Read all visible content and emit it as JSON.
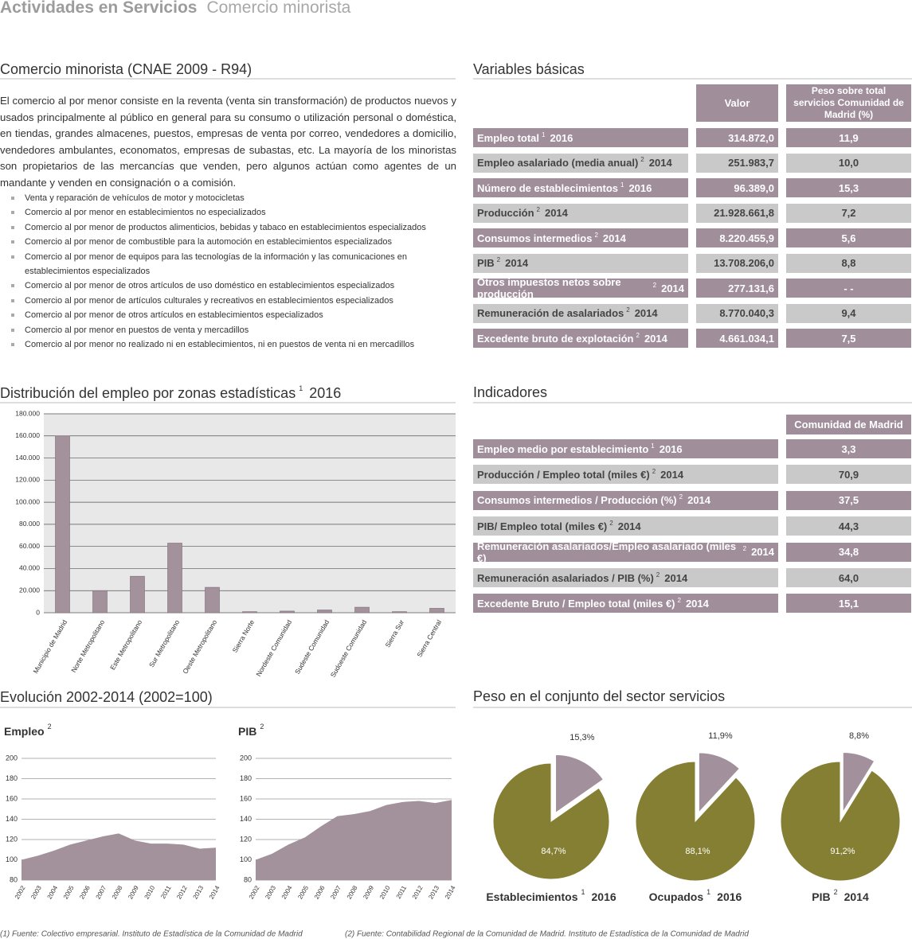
{
  "header": {
    "title": "Actividades en Servicios",
    "subtitle": "Comercio minorista"
  },
  "intro": {
    "title": "Comercio minorista (CNAE 2009 - R94)",
    "text": "El comercio al por menor consiste en la reventa (venta sin transformación) de productos nuevos y usados principalmente al público en general para su consumo o utilización personal o doméstica, en tiendas, grandes almacenes, puestos, empresas de venta por correo, vendedores a domicilio, vendedores ambulantes, economatos, empresas de subastas, etc. La mayoría de los minoristas son propietarios de las mercancías que venden, pero algunos actúan como agentes de un mandante y venden en consignación o a comisión.",
    "items": [
      "Venta y reparación de vehículos de motor y motocicletas",
      "Comercio al por menor en establecimientos no especializados",
      "Comercio al por menor de productos alimenticios, bebidas y tabaco en establecimientos especializados",
      "Comercio al por menor de combustible para la automoción en establecimientos especializados",
      "Comercio al por menor de equipos para las tecnologías de la información y las comunicaciones en establecimientos especializados",
      "Comercio al por menor de otros artículos de uso doméstico en establecimientos especializados",
      "Comercio al por menor de artículos culturales y recreativos en establecimientos especializados",
      "Comercio al por menor de otros artículos en establecimientos especializados",
      "Comercio al por menor en puestos de venta y mercadillos",
      "Comercio al por menor no realizado ni en establecimientos, ni en puestos de venta ni en mercadillos"
    ]
  },
  "basic_variables": {
    "title": "Variables básicas",
    "columns": [
      "Valor",
      "Peso sobre total servicios Comunidad de Madrid (%)"
    ],
    "rows": [
      {
        "label": "Empleo total",
        "note": "1",
        "year": "2016",
        "value": "314.872,0",
        "share": "11,9"
      },
      {
        "label": "Empleo asalariado (media anual)",
        "note": "2",
        "year": "2014",
        "value": "251.983,7",
        "share": "10,0"
      },
      {
        "label": "Número de establecimientos",
        "note": "1",
        "year": "2016",
        "value": "96.389,0",
        "share": "15,3"
      },
      {
        "label": "Producción",
        "note": "2",
        "year": "2014",
        "value": "21.928.661,8",
        "share": "7,2"
      },
      {
        "label": "Consumos intermedios",
        "note": "2",
        "year": "2014",
        "value": "8.220.455,9",
        "share": "5,6"
      },
      {
        "label": "PIB",
        "note": "2",
        "year": "2014",
        "value": "13.708.206,0",
        "share": "8,8"
      },
      {
        "label": "Otros impuestos netos sobre producción",
        "note": "2",
        "year": "2014",
        "value": "277.131,6",
        "share": "- -"
      },
      {
        "label": "Remuneración de asalariados",
        "note": "2",
        "year": "2014",
        "value": "8.770.040,3",
        "share": "9,4"
      },
      {
        "label": "Excedente bruto de explotación",
        "note": "2",
        "year": "2014",
        "value": "4.661.034,1",
        "share": "7,5"
      }
    ]
  },
  "indicators": {
    "title": "Indicadores",
    "column": "Comunidad de Madrid",
    "rows": [
      {
        "label": "Empleo medio por establecimiento",
        "note": "1",
        "year": "2016",
        "value": "3,3"
      },
      {
        "label": "Producción / Empleo total (miles €)",
        "note": "2",
        "year": "2014",
        "value": "70,9"
      },
      {
        "label": "Consumos intermedios / Producción (%)",
        "note": "2",
        "year": "2014",
        "value": "37,5"
      },
      {
        "label": "PIB/ Empleo total (miles €)",
        "note": "2",
        "year": "2014",
        "value": "44,3"
      },
      {
        "label": "Remuneración asalariados/Empleo asalariado (miles €)",
        "note": "2",
        "year": "2014",
        "value": "34,8"
      },
      {
        "label": "Remuneración asalariados / PIB (%)",
        "note": "2",
        "year": "2014",
        "value": "64,0"
      },
      {
        "label": "Excedente Bruto / Empleo total (miles €)",
        "note": "2",
        "year": "2014",
        "value": "15,1"
      }
    ]
  },
  "sections": {
    "evolution": "Evolución 2002-2014 (2002=100)",
    "weight": "Peso en el conjunto del sector servicios"
  },
  "chart_data": [
    {
      "type": "bar",
      "title": "Distribución del empleo por zonas estadísticas",
      "title_note": "1",
      "title_year": "2016",
      "categories": [
        "Municipio de Madrid",
        "Norte Metropolitano",
        "Este Metropolitano",
        "Sur Metropolitano",
        "Oeste Metropolitano",
        "Sierra Norte",
        "Nordeste Comunidad",
        "Sudeste Comunidad",
        "Sudoeste Comunidad",
        "Sierra Sur",
        "Sierra Central"
      ],
      "values": [
        160000,
        20000,
        33000,
        63000,
        23000,
        1000,
        1500,
        2500,
        5000,
        1000,
        4000
      ],
      "color": "#a3919b",
      "ylim": [
        0,
        180000
      ],
      "yticks": [
        0,
        {
          "value": 20000,
          "label": "20.000"
        },
        {
          "value": 40000,
          "label": "40.000"
        },
        {
          "value": 60000,
          "label": "60.000"
        },
        {
          "value": 80000,
          "label": "80.000"
        },
        {
          "value": 100000,
          "label": "100.000"
        },
        {
          "value": 120000,
          "label": "120.000"
        },
        {
          "value": 140000,
          "label": "140.000"
        },
        {
          "value": 160000,
          "label": "160.000"
        },
        {
          "value": 180000,
          "label": "180.000"
        }
      ],
      "grid": true
    },
    {
      "type": "area",
      "title": "Empleo",
      "title_note": "2",
      "categories": [
        "2002",
        "2003",
        "2004",
        "2005",
        "2006",
        "2007",
        "2008",
        "2009",
        "2010",
        "2011",
        "2012",
        "2013",
        "2014"
      ],
      "values": [
        100,
        104,
        109,
        115,
        119,
        123,
        126,
        119,
        116,
        116,
        115,
        111,
        112
      ],
      "color": "#a3919b",
      "ylim": [
        80,
        200
      ],
      "yticks": [
        80,
        100,
        120,
        140,
        160,
        180,
        200
      ],
      "grid": true
    },
    {
      "type": "area",
      "title": "PIB",
      "title_note": "2",
      "categories": [
        "2002",
        "2003",
        "2004",
        "2005",
        "2006",
        "2007",
        "2008",
        "2009",
        "2010",
        "2011",
        "2012",
        "2013",
        "2014"
      ],
      "values": [
        100,
        106,
        115,
        122,
        133,
        143,
        145,
        148,
        154,
        157,
        158,
        156,
        159
      ],
      "color": "#a3919b",
      "ylim": [
        80,
        200
      ],
      "yticks": [
        80,
        100,
        120,
        140,
        160,
        180,
        200
      ],
      "grid": true
    },
    {
      "type": "pie",
      "title": "Establecimientos",
      "title_note": "1",
      "title_year": "2016",
      "values": [
        15.3,
        84.7
      ],
      "value_labels": [
        "15,3%",
        "84,7%"
      ],
      "colors": [
        "#a3909d",
        "#857f33"
      ]
    },
    {
      "type": "pie",
      "title": "Ocupados",
      "title_note": "1",
      "title_year": "2016",
      "values": [
        11.9,
        88.1
      ],
      "value_labels": [
        "11,9%",
        "88,1%"
      ],
      "colors": [
        "#a3909d",
        "#857f33"
      ]
    },
    {
      "type": "pie",
      "title": "PIB",
      "title_note": "2",
      "title_year": "2014",
      "values": [
        8.8,
        91.2
      ],
      "value_labels": [
        "8,8%",
        "91,2%"
      ],
      "colors": [
        "#a3909d",
        "#857f33"
      ]
    }
  ],
  "footnotes": [
    "(1) Fuente: Colectivo empresarial. Instituto de Estadística de la Comunidad de Madrid",
    "(2) Fuente: Contabilidad Regional de la Comunidad de Madrid. Instituto de Estadística de la Comunidad de Madrid"
  ]
}
